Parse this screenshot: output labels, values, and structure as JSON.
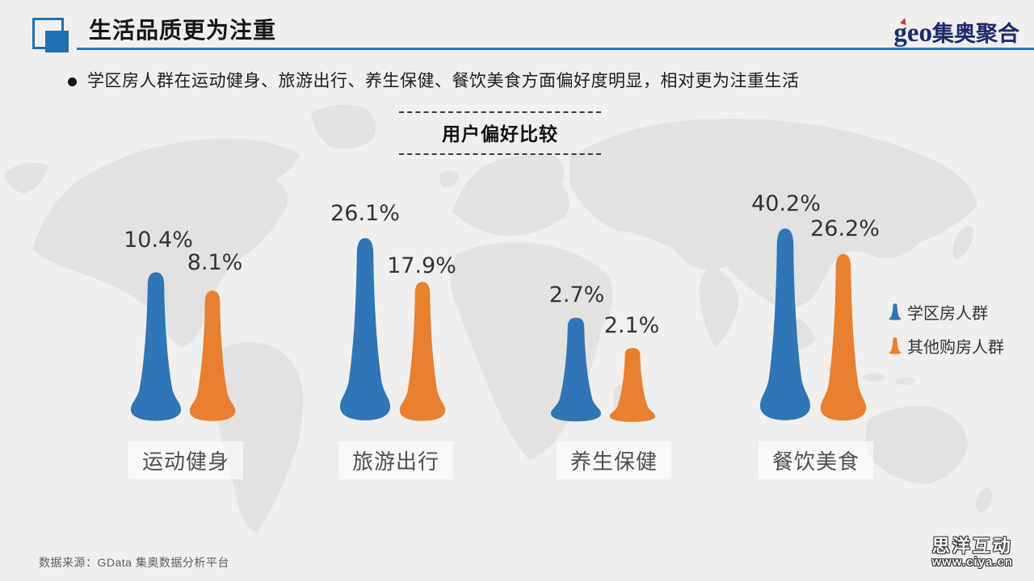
{
  "page": {
    "title": "生活品质更为注重",
    "logo": {
      "latin": "geo",
      "cjk": "集奥聚合"
    },
    "bullet": "学区房人群在运动健身、旅游出行、养生保健、餐饮美食方面偏好度明显，相对更为注重生活",
    "source": "数据来源：GData  集奥数据分析平台",
    "watermark": {
      "name": "思洋互动",
      "url": "www.ciya.cn"
    }
  },
  "chart_data": {
    "type": "bar",
    "variant": "pictorial-teardrop-cones",
    "title": "用户偏好比较",
    "categories": [
      "运动健身",
      "旅游出行",
      "养生保健",
      "餐饮美食"
    ],
    "series": [
      {
        "name": "学区房人群",
        "color": "#2e76b5",
        "values": [
          10.4,
          26.1,
          2.7,
          40.2
        ]
      },
      {
        "name": "其他购房人群",
        "color": "#e8802f",
        "values": [
          8.1,
          17.9,
          2.1,
          26.2
        ]
      }
    ],
    "value_suffix": "%",
    "legend_position": "right",
    "grid": false
  },
  "colors": {
    "accent_blue": "#2e76b5",
    "accent_orange": "#e8802f",
    "header_rule": "#2677b5",
    "logo_navy": "#1e2a6e",
    "logo_red": "#d8332a",
    "background": "#f0efee",
    "map_land": "#e3e2e0"
  }
}
